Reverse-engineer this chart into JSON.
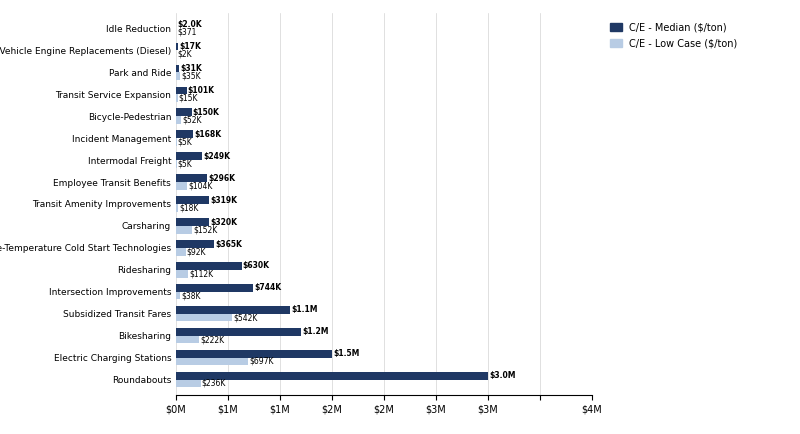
{
  "categories": [
    "Idle Reduction",
    "Heavy Vehicle Engine Replacements (Diesel)",
    "Park and Ride",
    "Transit Service Expansion",
    "Bicycle-Pedestrian",
    "Incident Management",
    "Intermodal Freight",
    "Employee Transit Benefits",
    "Transit Amenity Improvements",
    "Carsharing",
    "Extreme-Temperature Cold Start Technologies",
    "Ridesharing",
    "Intersection Improvements",
    "Subsidized Transit Fares",
    "Bikesharing",
    "Electric Charging Stations",
    "Roundabouts"
  ],
  "median_values": [
    2000,
    17000,
    31000,
    101000,
    150000,
    168000,
    249000,
    296000,
    319000,
    320000,
    365000,
    630000,
    744000,
    1100000,
    1200000,
    1500000,
    3000000
  ],
  "lowcase_values": [
    371,
    2000,
    35000,
    15000,
    52000,
    5000,
    5000,
    104000,
    18000,
    152000,
    92000,
    112000,
    38000,
    542000,
    222000,
    697000,
    236000
  ],
  "median_labels": [
    "$2.0K",
    "$17K",
    "$31K",
    "$101K",
    "$150K",
    "$168K",
    "$249K",
    "$296K",
    "$319K",
    "$320K",
    "$365K",
    "$630K",
    "$744K",
    "$1.1M",
    "$1.2M",
    "$1.5M",
    "$3.0M"
  ],
  "lowcase_labels": [
    "$371",
    "$2K",
    "$35K",
    "$15K",
    "$52K",
    "$5K",
    "$5K",
    "$104K",
    "$18K",
    "$152K",
    "$92K",
    "$112K",
    "$38K",
    "$542K",
    "$222K",
    "$697K",
    "$236K"
  ],
  "median_color": "#1F3864",
  "lowcase_color": "#B8CCE4",
  "legend_median": "C/E - Median ($/ton)",
  "legend_lowcase": "C/E - Low Case ($/ton)",
  "xlim": [
    0,
    4000000
  ],
  "xtick_values": [
    0,
    500000,
    1000000,
    1500000,
    2000000,
    2500000,
    3000000,
    3500000,
    4000000
  ],
  "xtick_labels": [
    "$0M",
    "$1M",
    "$1M",
    "$2M",
    "$2M",
    "$3M",
    "$3M",
    "",
    "$4M"
  ],
  "background_color": "#ffffff",
  "bar_height": 0.35
}
